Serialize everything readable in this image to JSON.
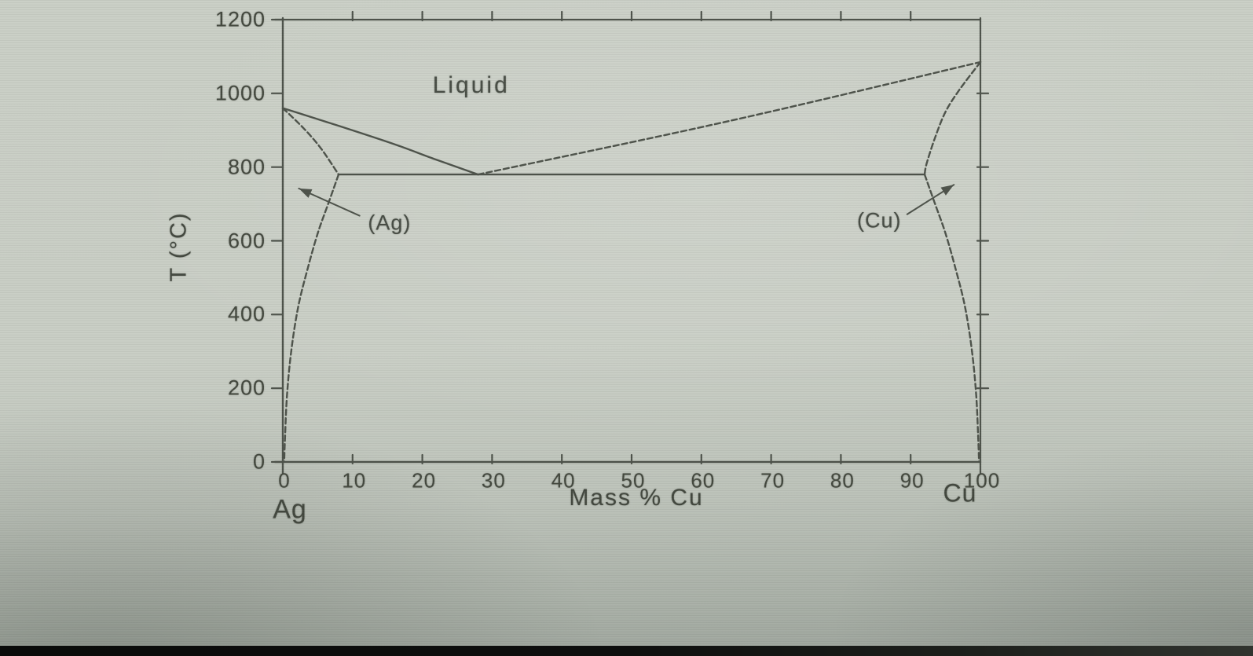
{
  "figure": {
    "kind": "binary eutectic phase diagram (photograph of printed figure)",
    "system": "Ag-Cu"
  },
  "colors": {
    "ink": "#4e534b",
    "text": "#43483f",
    "paper": "#c9cec5",
    "photo_edge": "#0b0c0b"
  },
  "chart_data": {
    "type": "line",
    "title": "",
    "xlabel": "Mass % Cu",
    "ylabel": "T (°C)",
    "left_end_label": "Ag",
    "right_end_label": "Cu",
    "xlim": [
      0,
      100
    ],
    "ylim": [
      0,
      1200
    ],
    "x_ticks": [
      0,
      10,
      20,
      30,
      40,
      50,
      60,
      70,
      80,
      90,
      100
    ],
    "y_ticks": [
      0,
      200,
      400,
      600,
      800,
      1000,
      1200
    ],
    "grid": false,
    "legend": false,
    "series": [
      {
        "name": "liquidus-left",
        "style": "solid",
        "points": [
          [
            0,
            960
          ],
          [
            8,
            912
          ],
          [
            16,
            862
          ],
          [
            22,
            820
          ],
          [
            28,
            780
          ]
        ]
      },
      {
        "name": "liquidus-right",
        "style": "hatched",
        "points": [
          [
            28,
            780
          ],
          [
            64,
            925
          ],
          [
            100,
            1085
          ]
        ]
      },
      {
        "name": "solidus-left",
        "style": "hatched",
        "points": [
          [
            0,
            960
          ],
          [
            3,
            905
          ],
          [
            5.5,
            850
          ],
          [
            8,
            780
          ]
        ]
      },
      {
        "name": "solidus-right",
        "style": "hatched",
        "points": [
          [
            100,
            1085
          ],
          [
            97,
            1010
          ],
          [
            95,
            950
          ],
          [
            93.5,
            880
          ],
          [
            92.3,
            810
          ],
          [
            92,
            780
          ]
        ]
      },
      {
        "name": "solvus-left",
        "style": "hatched",
        "points": [
          [
            8,
            780
          ],
          [
            6.5,
            700
          ],
          [
            5,
            620
          ],
          [
            3.5,
            520
          ],
          [
            2.2,
            420
          ],
          [
            1.2,
            300
          ],
          [
            0.6,
            180
          ],
          [
            0.3,
            60
          ],
          [
            0.2,
            0
          ]
        ]
      },
      {
        "name": "solvus-right",
        "style": "hatched",
        "points": [
          [
            92,
            780
          ],
          [
            93.5,
            700
          ],
          [
            95,
            620
          ],
          [
            96.5,
            520
          ],
          [
            97.8,
            420
          ],
          [
            98.8,
            300
          ],
          [
            99.4,
            180
          ],
          [
            99.7,
            60
          ],
          [
            99.8,
            0
          ]
        ]
      },
      {
        "name": "eutectic-isotherm",
        "style": "solid",
        "points": [
          [
            8,
            780
          ],
          [
            92,
            780
          ]
        ]
      }
    ],
    "region_labels": [
      {
        "text": "Liquid",
        "x": 27,
        "y": 1020
      }
    ],
    "annotations": [
      {
        "text": "(Ag)",
        "text_x": 15.3,
        "text_y": 648,
        "arrow_from_x": 11,
        "arrow_from_y": 668,
        "arrow_to_x": 2.3,
        "arrow_to_y": 742
      },
      {
        "text": "(Cu)",
        "text_x": 85.5,
        "text_y": 655,
        "arrow_from_x": 89.5,
        "arrow_from_y": 672,
        "arrow_to_x": 96.2,
        "arrow_to_y": 752
      }
    ],
    "key_points": {
      "eutectic": {
        "mass_pct_cu": 28,
        "temperature_c": 780
      },
      "ag_melting_point_c": 960,
      "cu_melting_point_c": 1085,
      "max_solubility_cu_in_ag_mass_pct": 8,
      "eutectic_line_right_end_mass_pct_cu": 92
    }
  }
}
